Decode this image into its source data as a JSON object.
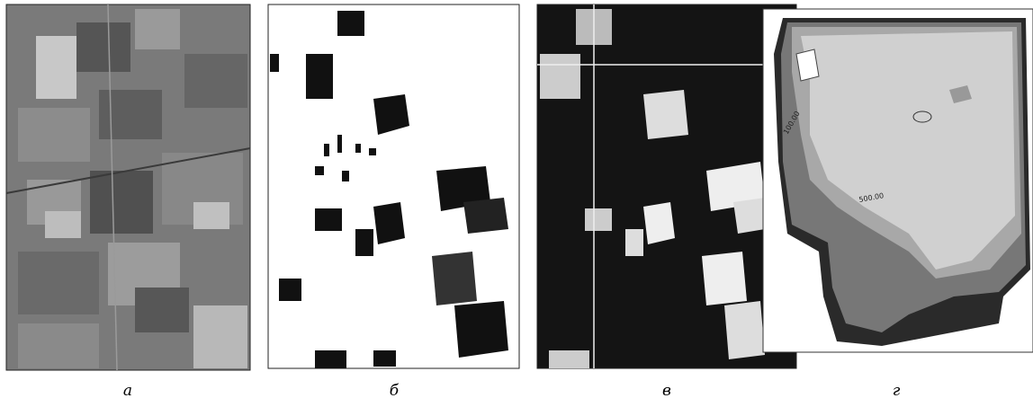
{
  "panels": [
    {
      "caption": "а"
    },
    {
      "caption": "б"
    },
    {
      "caption": "в"
    },
    {
      "caption": "г"
    }
  ],
  "contour_labels": [
    "100.00",
    "500.00"
  ]
}
